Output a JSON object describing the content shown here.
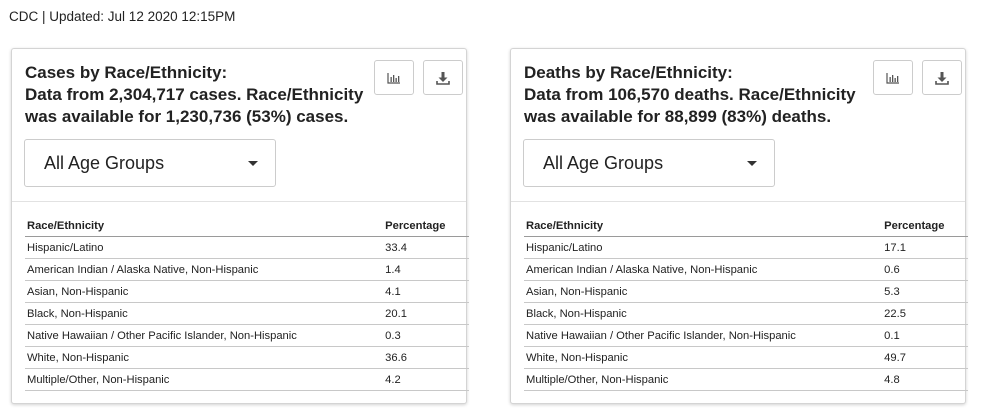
{
  "header": {
    "text": "CDC | Updated: Jul 12 2020 12:15PM"
  },
  "cards": [
    {
      "title_line1": "Cases by Race/Ethnicity:",
      "title_line2": "Data from 2,304,717 cases. Race/Ethnicity was available for 1,230,736 (53%) cases.",
      "select_value": "All Age Groups",
      "columns": [
        "Race/Ethnicity",
        "Percentage"
      ],
      "rows": [
        [
          "Hispanic/Latino",
          "33.4"
        ],
        [
          "American Indian / Alaska Native, Non-Hispanic",
          "1.4"
        ],
        [
          "Asian, Non-Hispanic",
          "4.1"
        ],
        [
          "Black, Non-Hispanic",
          "20.1"
        ],
        [
          "Native Hawaiian / Other Pacific Islander, Non-Hispanic",
          "0.3"
        ],
        [
          "White, Non-Hispanic",
          "36.6"
        ],
        [
          "Multiple/Other, Non-Hispanic",
          "4.2"
        ]
      ]
    },
    {
      "title_line1": "Deaths by Race/Ethnicity:",
      "title_line2": "Data from 106,570 deaths. Race/Ethnicity was available for 88,899 (83%) deaths.",
      "select_value": "All Age Groups",
      "columns": [
        "Race/Ethnicity",
        "Percentage"
      ],
      "rows": [
        [
          "Hispanic/Latino",
          "17.1"
        ],
        [
          "American Indian / Alaska Native, Non-Hispanic",
          "0.6"
        ],
        [
          "Asian, Non-Hispanic",
          "5.3"
        ],
        [
          "Black, Non-Hispanic",
          "22.5"
        ],
        [
          "Native Hawaiian / Other Pacific Islander, Non-Hispanic",
          "0.1"
        ],
        [
          "White, Non-Hispanic",
          "49.7"
        ],
        [
          "Multiple/Other, Non-Hispanic",
          "4.8"
        ]
      ]
    }
  ],
  "icons": {
    "chart": "bar-chart-icon",
    "download": "download-icon"
  }
}
